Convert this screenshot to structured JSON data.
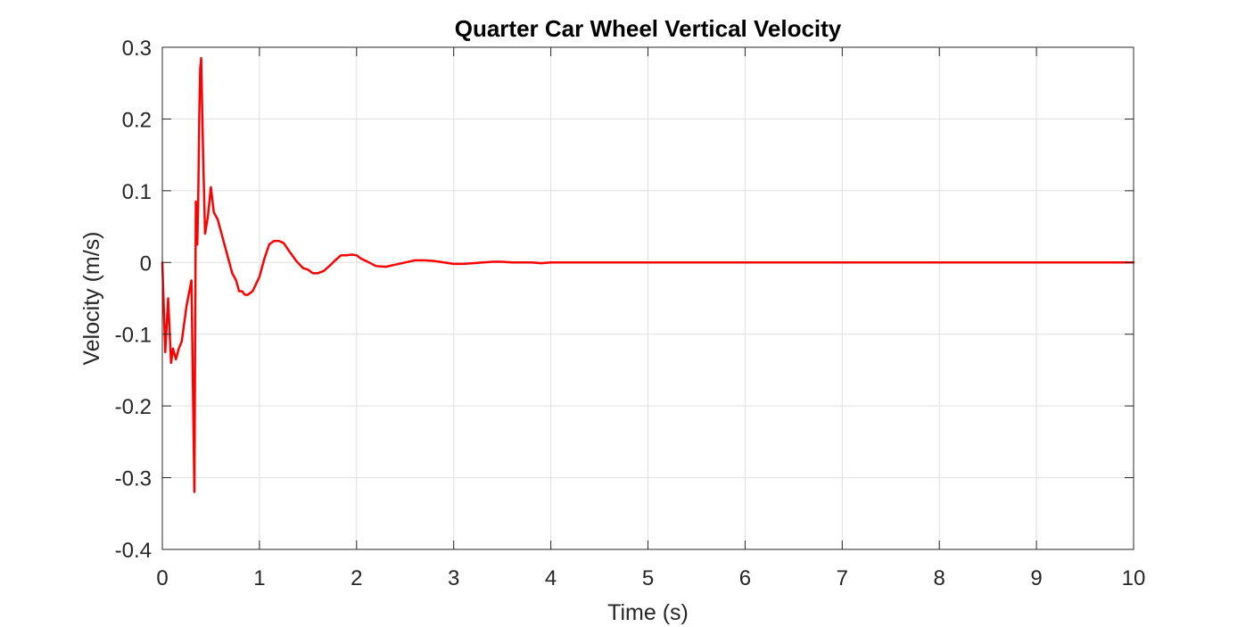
{
  "chart_data": {
    "type": "line",
    "title": "Quarter Car Wheel Vertical Velocity",
    "xlabel": "Time (s)",
    "ylabel": "Velocity (m/s)",
    "xlim": [
      0,
      10
    ],
    "ylim": [
      -0.4,
      0.3
    ],
    "xticks": [
      0,
      1,
      2,
      3,
      4,
      5,
      6,
      7,
      8,
      9,
      10
    ],
    "xtick_labels": [
      "0",
      "1",
      "2",
      "3",
      "4",
      "5",
      "6",
      "7",
      "8",
      "9",
      "10"
    ],
    "yticks": [
      -0.4,
      -0.3,
      -0.2,
      -0.1,
      0,
      0.1,
      0.2,
      0.3
    ],
    "ytick_labels": [
      "-0.4",
      "-0.3",
      "-0.2",
      "-0.1",
      "0",
      "0.1",
      "0.2",
      "0.3"
    ],
    "grid": true,
    "series": [
      {
        "color": "#ff0000",
        "x": [
          0,
          0.03,
          0.06,
          0.09,
          0.11,
          0.14,
          0.17,
          0.2,
          0.25,
          0.3,
          0.33,
          0.345,
          0.36,
          0.37,
          0.38,
          0.39,
          0.4,
          0.42,
          0.44,
          0.47,
          0.5,
          0.53,
          0.57,
          0.62,
          0.67,
          0.72,
          0.76,
          0.79,
          0.82,
          0.85,
          0.88,
          0.93,
          1.0,
          1.05,
          1.1,
          1.15,
          1.2,
          1.25,
          1.3,
          1.38,
          1.45,
          1.5,
          1.55,
          1.6,
          1.66,
          1.72,
          1.78,
          1.84,
          1.9,
          1.95,
          2.0,
          2.05,
          2.1,
          2.2,
          2.3,
          2.4,
          2.5,
          2.6,
          2.7,
          2.8,
          2.9,
          3.0,
          3.1,
          3.2,
          3.3,
          3.4,
          3.5,
          3.6,
          3.7,
          3.8,
          3.9,
          4.0,
          4.2,
          4.4,
          4.6,
          4.8,
          5.0,
          5.5,
          6.0,
          6.5,
          7.0,
          7.5,
          8.0,
          8.5,
          9.0,
          9.5,
          10.0
        ],
        "y": [
          0.0,
          -0.125,
          -0.05,
          -0.14,
          -0.12,
          -0.135,
          -0.12,
          -0.11,
          -0.06,
          -0.025,
          -0.32,
          0.085,
          0.025,
          0.09,
          0.2,
          0.27,
          0.285,
          0.15,
          0.04,
          0.065,
          0.105,
          0.07,
          0.06,
          0.035,
          0.01,
          -0.015,
          -0.025,
          -0.04,
          -0.04,
          -0.045,
          -0.045,
          -0.04,
          -0.02,
          0.005,
          0.025,
          0.03,
          0.03,
          0.027,
          0.017,
          0.002,
          -0.008,
          -0.01,
          -0.015,
          -0.015,
          -0.012,
          -0.005,
          0.003,
          0.01,
          0.01,
          0.011,
          0.01,
          0.005,
          0.002,
          -0.005,
          -0.006,
          -0.003,
          0.0,
          0.003,
          0.003,
          0.002,
          0.0,
          -0.002,
          -0.002,
          -0.001,
          0.0,
          0.001,
          0.001,
          0.0,
          0.0,
          0.0,
          -0.001,
          0.0,
          0.0,
          0.0,
          0.0,
          0.0,
          0.0,
          0.0,
          0.0,
          0.0,
          0.0,
          0.0,
          0.0,
          0.0,
          0.0,
          0.0,
          0.0
        ]
      }
    ]
  }
}
